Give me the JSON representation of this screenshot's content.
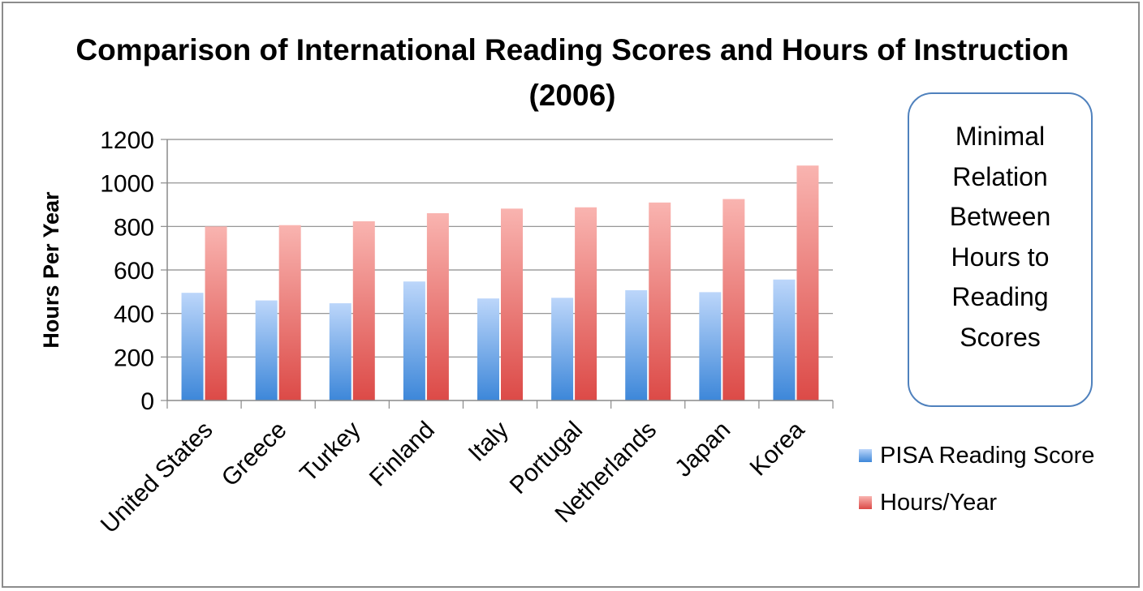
{
  "chart_data": {
    "type": "bar",
    "title": "Comparison of International Reading Scores and Hours of Instruction (2006)",
    "ylabel": "Hours Per Year",
    "xlabel": "",
    "ylim": [
      0,
      1200
    ],
    "yticks": [
      0,
      200,
      400,
      600,
      800,
      1000,
      1200
    ],
    "categories": [
      "United States",
      "Greece",
      "Turkey",
      "Finland",
      "Italy",
      "Portugal",
      "Netherlands",
      "Japan",
      "Korea"
    ],
    "series": [
      {
        "name": "PISA Reading Score",
        "values": [
          495,
          460,
          447,
          547,
          469,
          472,
          507,
          498,
          556
        ],
        "color": "#4a8fdc"
      },
      {
        "name": "Hours/Year",
        "values": [
          800,
          806,
          824,
          861,
          882,
          888,
          910,
          926,
          1080
        ],
        "color": "#e05555"
      }
    ],
    "grid": true,
    "legend_position": "right"
  },
  "callout": {
    "text": "Minimal Relation Between Hours to Reading Scores"
  }
}
